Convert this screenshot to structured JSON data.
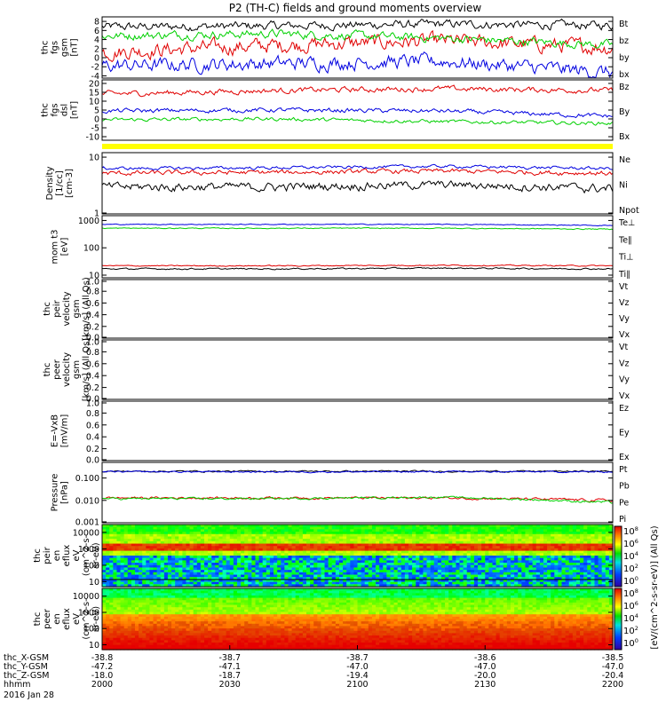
{
  "title": "P2 (TH-C) fields and ground moments overview",
  "colors": {
    "black": "#000000",
    "red": "#e00000",
    "green": "#00d000",
    "blue": "#0000e0",
    "yellow": "#ffff00"
  },
  "chart_data": [
    {
      "id": "fgs_gsm",
      "type": "line",
      "ylabel": [
        "thc",
        "fgs",
        "gsm",
        "[nT]"
      ],
      "yticks": [
        "8",
        "6",
        "4",
        "2",
        "0",
        "-2",
        "-4"
      ],
      "ylim": [
        -4.5,
        9
      ],
      "series": [
        {
          "name": "Bt",
          "color": "#000000",
          "base": 6.8,
          "amp": 0.9,
          "trend": [
            0,
            0.2,
            0.6,
            0.3
          ]
        },
        {
          "name": "bz",
          "color": "#e00000",
          "base": 1.2,
          "amp": 1.6,
          "trend": [
            0,
            1.5,
            2.5,
            1.0
          ]
        },
        {
          "name": "by",
          "color": "#00d000",
          "base": 4.8,
          "amp": 0.9,
          "trend": [
            0,
            0.5,
            -0.5,
            -2.0
          ]
        },
        {
          "name": "bx",
          "color": "#0000e0",
          "base": -1.8,
          "amp": 1.5,
          "trend": [
            0,
            0.5,
            1.0,
            -1.5
          ]
        }
      ]
    },
    {
      "id": "fgs_dsl",
      "type": "line",
      "ylabel": [
        "thc",
        "fgs",
        "dsl",
        "[nT]"
      ],
      "yticks": [
        "20",
        "15",
        "10",
        "5",
        "0",
        "-5",
        "-10"
      ],
      "ylim": [
        -12,
        22
      ],
      "series": [
        {
          "name": "Bz",
          "color": "#e00000",
          "base": 14,
          "amp": 1.5,
          "trend": [
            0,
            2,
            3,
            2
          ]
        },
        {
          "name": "By",
          "color": "#00d000",
          "base": -0.5,
          "amp": 1.0,
          "trend": [
            0,
            0.5,
            -1,
            -2
          ]
        },
        {
          "name": "Bx",
          "color": "#0000e0",
          "base": 4.5,
          "amp": 1.2,
          "trend": [
            0,
            0.5,
            0,
            -3
          ]
        }
      ]
    },
    {
      "id": "density",
      "type": "line",
      "scale": "log",
      "ylabel": [
        "Density",
        "[1/cc]",
        "[cm-3]"
      ],
      "yticks": [
        "10",
        "1"
      ],
      "ylim": [
        1,
        12
      ],
      "series": [
        {
          "name": "Ne",
          "color": "#e00000",
          "base": 5.2,
          "amp": 0.5,
          "trend": [
            0,
            0.2,
            0.5,
            0
          ]
        },
        {
          "name": "Ni",
          "color": "#000000",
          "base": 3.0,
          "amp": 0.5,
          "trend": [
            0,
            0,
            0.3,
            -0.2
          ]
        },
        {
          "name": "Npot",
          "color": "#0000e0",
          "base": 6.3,
          "amp": 0.4,
          "trend": [
            0,
            0.2,
            0.6,
            0
          ]
        }
      ]
    },
    {
      "id": "temperature",
      "type": "line",
      "scale": "log",
      "ylabel": [
        "mom t3",
        "[eV]"
      ],
      "yticks": [
        "1000",
        "100",
        "10"
      ],
      "ylim": [
        8,
        1500
      ],
      "series": [
        {
          "name": "Te⊥",
          "color": "#e00000",
          "base": 22,
          "amp": 1,
          "trend": [
            0,
            0,
            1,
            0
          ]
        },
        {
          "name": "Te∥",
          "color": "#000000",
          "base": 17,
          "amp": 1,
          "trend": [
            0,
            0,
            1,
            0
          ]
        },
        {
          "name": "Ti⊥",
          "color": "#0000e0",
          "base": 720,
          "amp": 25,
          "trend": [
            0,
            0,
            0,
            -60
          ]
        },
        {
          "name": "Ti∥",
          "color": "#00d000",
          "base": 520,
          "amp": 20,
          "trend": [
            0,
            0,
            0,
            -40
          ]
        }
      ]
    },
    {
      "id": "peir_velocity",
      "type": "line",
      "ylabel": [
        "thc",
        "peir",
        "velocity",
        "gsm",
        "[km/s] (All Qs)"
      ],
      "yticks": [
        "1.0",
        "0.8",
        "0.6",
        "0.4",
        "0.2",
        "0.0"
      ],
      "ylim": [
        0,
        1
      ],
      "series": [
        {
          "name": "Vt",
          "color": "#000000"
        },
        {
          "name": "Vz",
          "color": "#e00000"
        },
        {
          "name": "Vy",
          "color": "#00d000"
        },
        {
          "name": "Vx",
          "color": "#0000e0"
        }
      ]
    },
    {
      "id": "peer_velocity",
      "type": "line",
      "ylabel": [
        "thc",
        "peer",
        "velocity",
        "gsm",
        "[km/s] (All Qs)"
      ],
      "yticks": [
        "1.0",
        "0.8",
        "0.6",
        "0.4",
        "0.2",
        "0.0"
      ],
      "ylim": [
        0,
        1
      ],
      "series": [
        {
          "name": "Vt",
          "color": "#000000"
        },
        {
          "name": "Vz",
          "color": "#e00000"
        },
        {
          "name": "Vy",
          "color": "#00d000"
        },
        {
          "name": "Vx",
          "color": "#0000e0"
        }
      ]
    },
    {
      "id": "efield",
      "type": "line",
      "ylabel": [
        "E=-VxB",
        "[mV/m]"
      ],
      "yticks": [
        "1.0",
        "0.8",
        "0.6",
        "0.4",
        "0.2",
        "0.0"
      ],
      "ylim": [
        0,
        1
      ],
      "series": [
        {
          "name": "Ez",
          "color": "#e00000"
        },
        {
          "name": "Ey",
          "color": "#00d000"
        },
        {
          "name": "Ex",
          "color": "#0000e0"
        }
      ]
    },
    {
      "id": "pressure",
      "type": "line",
      "scale": "log",
      "ylabel": [
        "Pressure",
        "[nPa]"
      ],
      "yticks": [
        "0.100",
        "0.010",
        "0.001"
      ],
      "ylim": [
        0.001,
        0.5
      ],
      "series": [
        {
          "name": "Pt",
          "color": "#000000",
          "base": 0.2,
          "amp": 0.015,
          "trend": [
            0,
            0,
            0,
            0
          ]
        },
        {
          "name": "Pb",
          "color": "#e00000",
          "base": 0.013,
          "amp": 0.0015,
          "trend": [
            0,
            0,
            0,
            -0.003
          ]
        },
        {
          "name": "Pe",
          "color": "#00d000",
          "base": 0.012,
          "amp": 0.0012,
          "trend": [
            0,
            0,
            0.002,
            -0.004
          ]
        },
        {
          "name": "Pi",
          "color": "#0000e0",
          "base": 0.19,
          "amp": 0.015,
          "trend": [
            0,
            0,
            0,
            0
          ]
        }
      ]
    },
    {
      "id": "peir_spec",
      "type": "heatmap",
      "scale": "log",
      "ylabel": [
        "thc",
        "peir",
        "en",
        "eflux",
        "eV",
        "(cm^2-s-",
        "sr-eV)"
      ],
      "yticks": [
        "10000",
        "1000",
        "100",
        "10"
      ],
      "ylim": [
        5,
        30000
      ]
    },
    {
      "id": "peer_spec",
      "type": "heatmap",
      "scale": "log",
      "ylabel": [
        "thc",
        "peer",
        "en",
        "eflux",
        "eV",
        "(cm^2-s-",
        "sr-eV)"
      ],
      "yticks": [
        "10000",
        "1000",
        "100",
        "10"
      ],
      "ylim": [
        5,
        30000
      ]
    }
  ],
  "colorbar": {
    "label": "[eV/(cm^2-s-sr-eV)] (All Qs)",
    "ticks": [
      "10^8",
      "10^6",
      "10^4",
      "10^2",
      "10^0"
    ]
  },
  "xaxis": {
    "rows": [
      {
        "label": "thc_X-GSM",
        "values": [
          "-38.8",
          "-38.7",
          "-38.7",
          "-38.6",
          "-38.5"
        ]
      },
      {
        "label": "thc_Y-GSM",
        "values": [
          "-47.2",
          "-47.1",
          "-47.0",
          "-47.0",
          "-47.0"
        ]
      },
      {
        "label": "thc_Z-GSM",
        "values": [
          "-18.0",
          "-18.7",
          "-19.4",
          "-20.0",
          "-20.4"
        ]
      },
      {
        "label": "hhmm",
        "values": [
          "2000",
          "2030",
          "2100",
          "2130",
          "2200"
        ]
      }
    ],
    "date": "2016 Jan 28"
  }
}
